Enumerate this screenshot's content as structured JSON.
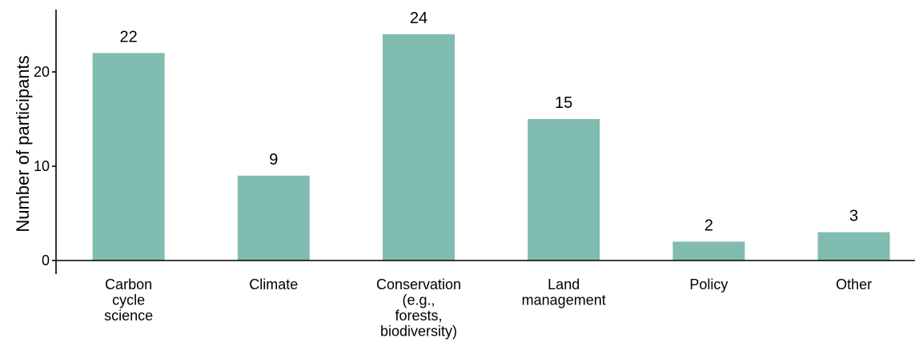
{
  "chart_data": {
    "type": "bar",
    "categories": [
      "Carbon\ncycle\nscience",
      "Climate",
      "Conservation\n(e.g.,\nforests,\nbiodiversity)",
      "Land\nmanagement",
      "Policy",
      "Other"
    ],
    "values": [
      22,
      9,
      24,
      15,
      2,
      3
    ],
    "data_labels": [
      "22",
      "9",
      "24",
      "15",
      "2",
      "3"
    ],
    "xlabel": "",
    "ylabel": "Number of participants",
    "ylim": [
      0,
      26.5
    ],
    "yticks": [
      0,
      10,
      20
    ],
    "ytick_labels": [
      "0",
      "10",
      "20"
    ],
    "bar_color": "#80bcb0",
    "grid": false,
    "legend": "none"
  }
}
